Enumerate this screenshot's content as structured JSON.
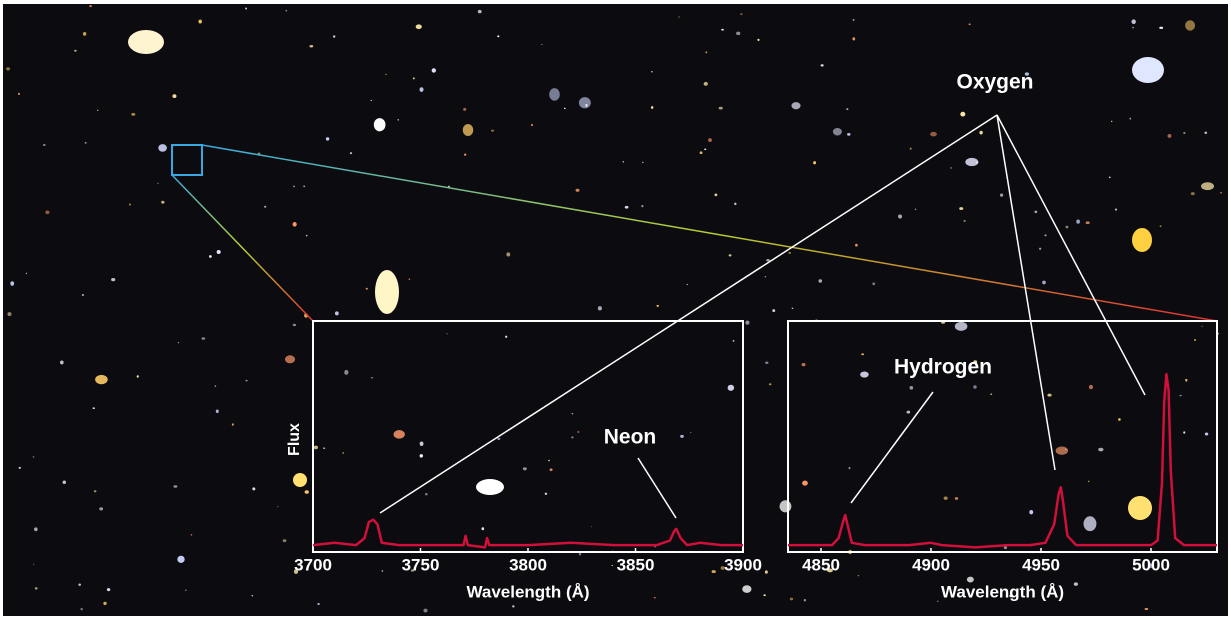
{
  "chart_data": [
    {
      "type": "line",
      "x_label": "Wavelength (Å)",
      "y_label": "Flux",
      "xlim": [
        3700,
        3900
      ],
      "xticks": [
        3700,
        3750,
        3800,
        3850,
        3900
      ],
      "ylim": [
        0,
        1
      ],
      "color": "#d0103a",
      "annotations": [
        "Neon"
      ],
      "x": [
        3700,
        3710,
        3720,
        3724,
        3726,
        3728,
        3730,
        3732,
        3740,
        3760,
        3770,
        3771,
        3772,
        3780,
        3781,
        3782,
        3800,
        3820,
        3840,
        3860,
        3866,
        3868,
        3869,
        3871,
        3874,
        3880,
        3890,
        3900
      ],
      "values": [
        0.03,
        0.04,
        0.03,
        0.06,
        0.13,
        0.14,
        0.12,
        0.04,
        0.03,
        0.03,
        0.03,
        0.07,
        0.03,
        0.02,
        0.06,
        0.03,
        0.03,
        0.04,
        0.03,
        0.03,
        0.05,
        0.09,
        0.1,
        0.06,
        0.03,
        0.04,
        0.03,
        0.03
      ]
    },
    {
      "type": "line",
      "x_label": "Wavelength (Å)",
      "xlim": [
        4835,
        5030
      ],
      "xticks": [
        4850,
        4900,
        4950,
        5000
      ],
      "ylim": [
        0,
        1
      ],
      "color": "#d0103a",
      "annotations": [
        "Hydrogen",
        "Oxygen"
      ],
      "x": [
        4835,
        4845,
        4855,
        4858,
        4860,
        4861,
        4862,
        4864,
        4870,
        4890,
        4900,
        4905,
        4920,
        4935,
        4945,
        4952,
        4956,
        4958,
        4959,
        4960,
        4962,
        4966,
        4975,
        4990,
        5000,
        5003,
        5005,
        5006,
        5007,
        5008,
        5009,
        5011,
        5015,
        5030
      ],
      "values": [
        0.03,
        0.03,
        0.03,
        0.06,
        0.13,
        0.16,
        0.12,
        0.04,
        0.03,
        0.03,
        0.04,
        0.03,
        0.02,
        0.03,
        0.03,
        0.04,
        0.12,
        0.25,
        0.28,
        0.22,
        0.07,
        0.03,
        0.03,
        0.03,
        0.03,
        0.05,
        0.3,
        0.65,
        0.77,
        0.7,
        0.35,
        0.06,
        0.03,
        0.03
      ]
    }
  ]
}
